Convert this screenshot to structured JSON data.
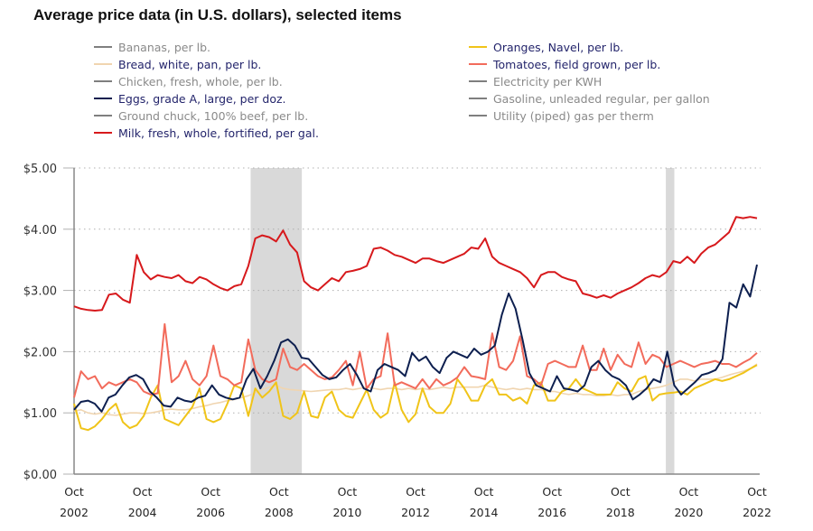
{
  "chart_data": {
    "type": "line",
    "title": "Average price data (in U.S. dollars), selected items",
    "xlabel": "",
    "ylabel": "",
    "ylim": [
      0,
      5
    ],
    "xlim": [
      2002.75,
      2022.75
    ],
    "grid": true,
    "legend_position": "top",
    "y_ticks": [
      "$0.00",
      "$1.00",
      "$2.00",
      "$3.00",
      "$4.00",
      "$5.00"
    ],
    "y_tick_values": [
      0,
      1,
      2,
      3,
      4,
      5
    ],
    "x_ticks": [
      {
        "month": "Oct",
        "year": "2002",
        "value": 2002.75
      },
      {
        "month": "Oct",
        "year": "2004",
        "value": 2004.75
      },
      {
        "month": "Oct",
        "year": "2006",
        "value": 2006.75
      },
      {
        "month": "Oct",
        "year": "2008",
        "value": 2008.75
      },
      {
        "month": "Oct",
        "year": "2010",
        "value": 2010.75
      },
      {
        "month": "Oct",
        "year": "2012",
        "value": 2012.75
      },
      {
        "month": "Oct",
        "year": "2014",
        "value": 2014.75
      },
      {
        "month": "Oct",
        "year": "2016",
        "value": 2016.75
      },
      {
        "month": "Oct",
        "year": "2018",
        "value": 2018.75
      },
      {
        "month": "Oct",
        "year": "2020",
        "value": 2020.75
      },
      {
        "month": "Oct",
        "year": "2022",
        "value": 2022.75
      }
    ],
    "recession_bands": [
      {
        "start": 2007.92,
        "end": 2009.42
      },
      {
        "start": 2020.08,
        "end": 2020.33
      }
    ],
    "legend": [
      {
        "name": "Bananas, per lb.",
        "color": "#7f7f7f",
        "active": false,
        "column": 0
      },
      {
        "name": "Bread, white, pan, per lb.",
        "color": "#f0d5b0",
        "active": true,
        "column": 0
      },
      {
        "name": "Chicken, fresh, whole, per lb.",
        "color": "#7f7f7f",
        "active": false,
        "column": 0
      },
      {
        "name": "Eggs, grade A, large, per doz.",
        "color": "#0d1f4f",
        "active": true,
        "column": 0
      },
      {
        "name": "Ground chuck, 100% beef, per lb.",
        "color": "#7f7f7f",
        "active": false,
        "column": 0
      },
      {
        "name": "Milk, fresh, whole, fortified, per gal.",
        "color": "#d7191c",
        "active": true,
        "column": 0
      },
      {
        "name": "Oranges, Navel, per lb.",
        "color": "#f0c419",
        "active": true,
        "column": 1
      },
      {
        "name": "Tomatoes, field grown, per lb.",
        "color": "#f26b5b",
        "active": true,
        "column": 1
      },
      {
        "name": "Electricity per KWH",
        "color": "#7f7f7f",
        "active": false,
        "column": 1
      },
      {
        "name": "Gasoline, unleaded regular, per gallon",
        "color": "#7f7f7f",
        "active": false,
        "column": 1
      },
      {
        "name": "Utility (piped) gas per therm",
        "color": "#7f7f7f",
        "active": false,
        "column": 1
      }
    ],
    "x_step": 0.25,
    "series": [
      {
        "name": "Milk, fresh, whole, fortified, per gal.",
        "color": "#d7191c",
        "values": [
          2.74,
          2.7,
          2.68,
          2.67,
          2.68,
          2.93,
          2.95,
          2.85,
          2.8,
          3.58,
          3.3,
          3.18,
          3.25,
          3.22,
          3.2,
          3.25,
          3.15,
          3.12,
          3.22,
          3.18,
          3.1,
          3.04,
          3.0,
          3.07,
          3.1,
          3.4,
          3.85,
          3.9,
          3.87,
          3.8,
          3.98,
          3.75,
          3.62,
          3.15,
          3.05,
          3.0,
          3.1,
          3.2,
          3.15,
          3.3,
          3.32,
          3.35,
          3.4,
          3.68,
          3.7,
          3.65,
          3.58,
          3.55,
          3.5,
          3.45,
          3.52,
          3.52,
          3.48,
          3.45,
          3.5,
          3.55,
          3.6,
          3.7,
          3.68,
          3.85,
          3.55,
          3.45,
          3.4,
          3.35,
          3.3,
          3.2,
          3.05,
          3.25,
          3.3,
          3.3,
          3.22,
          3.18,
          3.15,
          2.95,
          2.92,
          2.88,
          2.92,
          2.88,
          2.95,
          3.0,
          3.05,
          3.12,
          3.2,
          3.25,
          3.22,
          3.3,
          3.48,
          3.45,
          3.55,
          3.45,
          3.6,
          3.7,
          3.75,
          3.85,
          3.95,
          4.2,
          4.18,
          4.2,
          4.18
        ]
      },
      {
        "name": "Eggs, grade A, large, per doz.",
        "color": "#0d1f4f",
        "values": [
          1.05,
          1.18,
          1.2,
          1.15,
          1.02,
          1.25,
          1.3,
          1.45,
          1.58,
          1.62,
          1.55,
          1.35,
          1.25,
          1.12,
          1.1,
          1.25,
          1.2,
          1.18,
          1.25,
          1.28,
          1.45,
          1.3,
          1.25,
          1.22,
          1.25,
          1.55,
          1.72,
          1.4,
          1.6,
          1.85,
          2.15,
          2.2,
          2.1,
          1.9,
          1.88,
          1.75,
          1.62,
          1.55,
          1.58,
          1.7,
          1.8,
          1.62,
          1.4,
          1.35,
          1.7,
          1.8,
          1.75,
          1.7,
          1.6,
          1.98,
          1.85,
          1.92,
          1.75,
          1.65,
          1.9,
          2.0,
          1.95,
          1.9,
          2.05,
          1.95,
          2.0,
          2.1,
          2.6,
          2.95,
          2.7,
          2.2,
          1.65,
          1.45,
          1.4,
          1.35,
          1.6,
          1.4,
          1.38,
          1.35,
          1.45,
          1.75,
          1.85,
          1.7,
          1.6,
          1.55,
          1.45,
          1.22,
          1.3,
          1.4,
          1.55,
          1.5,
          2.0,
          1.45,
          1.3,
          1.4,
          1.5,
          1.62,
          1.65,
          1.7,
          1.88,
          2.8,
          2.72,
          3.1,
          2.9,
          3.42
        ]
      },
      {
        "name": "Tomatoes, field grown, per lb.",
        "color": "#f26b5b",
        "values": [
          1.25,
          1.68,
          1.55,
          1.6,
          1.4,
          1.5,
          1.45,
          1.5,
          1.55,
          1.5,
          1.35,
          1.3,
          1.32,
          2.45,
          1.5,
          1.6,
          1.85,
          1.55,
          1.45,
          1.6,
          2.1,
          1.6,
          1.55,
          1.45,
          1.5,
          2.2,
          1.7,
          1.55,
          1.5,
          1.55,
          2.05,
          1.75,
          1.7,
          1.8,
          1.7,
          1.6,
          1.55,
          1.58,
          1.7,
          1.85,
          1.45,
          2.0,
          1.4,
          1.55,
          1.6,
          2.3,
          1.45,
          1.5,
          1.45,
          1.4,
          1.55,
          1.4,
          1.55,
          1.45,
          1.5,
          1.58,
          1.75,
          1.6,
          1.58,
          1.55,
          2.3,
          1.75,
          1.7,
          1.85,
          2.25,
          1.6,
          1.55,
          1.45,
          1.8,
          1.85,
          1.8,
          1.75,
          1.75,
          2.1,
          1.7,
          1.7,
          2.05,
          1.7,
          1.95,
          1.8,
          1.75,
          2.15,
          1.8,
          1.95,
          1.9,
          1.75,
          1.8,
          1.85,
          1.8,
          1.75,
          1.8,
          1.82,
          1.85,
          1.8,
          1.8,
          1.75,
          1.82,
          1.88,
          1.98
        ]
      },
      {
        "name": "Oranges, Navel, per lb.",
        "color": "#f0c419",
        "values": [
          1.15,
          0.75,
          0.72,
          0.78,
          0.9,
          1.05,
          1.15,
          0.85,
          0.75,
          0.8,
          0.95,
          1.25,
          1.45,
          0.9,
          0.85,
          0.8,
          0.95,
          1.1,
          1.4,
          0.9,
          0.85,
          0.9,
          1.15,
          1.45,
          1.4,
          0.95,
          1.4,
          1.25,
          1.35,
          1.5,
          0.95,
          0.9,
          1.0,
          1.35,
          0.95,
          0.92,
          1.25,
          1.35,
          1.05,
          0.95,
          0.92,
          1.15,
          1.38,
          1.05,
          0.92,
          1.0,
          1.5,
          1.05,
          0.85,
          0.98,
          1.4,
          1.1,
          1.0,
          1.0,
          1.15,
          1.55,
          1.4,
          1.2,
          1.2,
          1.45,
          1.55,
          1.3,
          1.3,
          1.2,
          1.25,
          1.15,
          1.45,
          1.5,
          1.2,
          1.2,
          1.35,
          1.4,
          1.55,
          1.4,
          1.35,
          1.3,
          1.3,
          1.3,
          1.5,
          1.4,
          1.35,
          1.55,
          1.6,
          1.2,
          1.3,
          1.32,
          1.33,
          1.35,
          1.3,
          1.4,
          1.45,
          1.5,
          1.55,
          1.52,
          1.55,
          1.6,
          1.65,
          1.72,
          1.78
        ]
      },
      {
        "name": "Bread, white, pan, per lb.",
        "color": "#f0d5b0",
        "values": [
          1.03,
          1.05,
          1.0,
          0.98,
          1.0,
          0.97,
          0.96,
          0.98,
          1.0,
          1.0,
          0.99,
          1.0,
          1.02,
          1.05,
          1.06,
          1.05,
          1.05,
          1.07,
          1.1,
          1.12,
          1.15,
          1.17,
          1.2,
          1.22,
          1.25,
          1.28,
          1.33,
          1.38,
          1.42,
          1.45,
          1.4,
          1.38,
          1.37,
          1.36,
          1.35,
          1.36,
          1.37,
          1.38,
          1.38,
          1.4,
          1.38,
          1.4,
          1.42,
          1.4,
          1.38,
          1.4,
          1.4,
          1.38,
          1.4,
          1.38,
          1.4,
          1.38,
          1.4,
          1.42,
          1.4,
          1.42,
          1.42,
          1.42,
          1.42,
          1.45,
          1.42,
          1.4,
          1.38,
          1.4,
          1.38,
          1.4,
          1.38,
          1.38,
          1.35,
          1.35,
          1.32,
          1.3,
          1.32,
          1.3,
          1.3,
          1.28,
          1.28,
          1.3,
          1.28,
          1.3,
          1.3,
          1.35,
          1.38,
          1.4,
          1.42,
          1.45,
          1.5,
          1.55,
          1.55,
          1.52,
          1.55,
          1.55,
          1.55,
          1.58,
          1.62,
          1.65,
          1.68,
          1.72,
          1.8
        ]
      }
    ]
  }
}
